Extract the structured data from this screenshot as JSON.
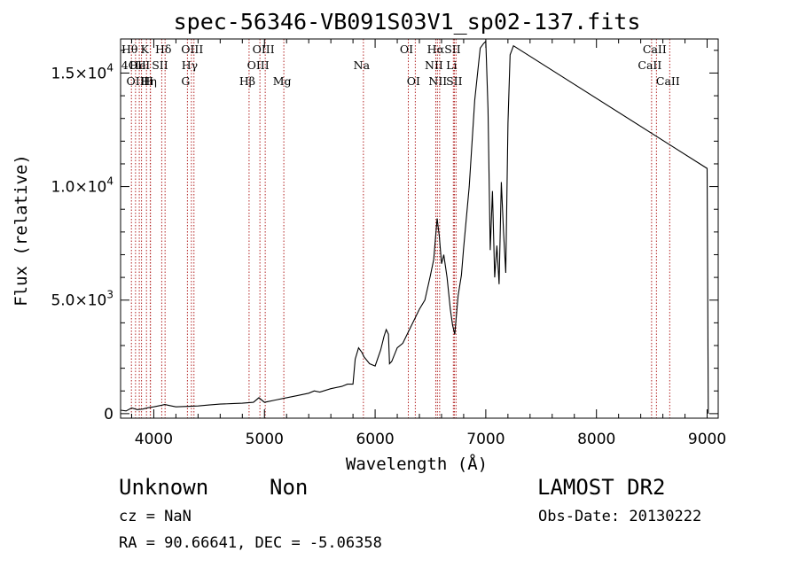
{
  "chart_data": {
    "type": "line",
    "title": "spec-56346-VB091S03V1_sp02-137.fits",
    "xlabel": "Wavelength (Å)",
    "ylabel": "Flux (relative)",
    "xlim": [
      3700,
      9100
    ],
    "ylim": [
      -200,
      16500
    ],
    "xticks": [
      {
        "v": 4000,
        "label": "4000"
      },
      {
        "v": 5000,
        "label": "5000"
      },
      {
        "v": 6000,
        "label": "6000"
      },
      {
        "v": 7000,
        "label": "7000"
      },
      {
        "v": 8000,
        "label": "8000"
      },
      {
        "v": 9000,
        "label": "9000"
      }
    ],
    "yticks": [
      {
        "v": 0,
        "label": "0"
      },
      {
        "v": 5000,
        "label": "5.0×10",
        "exp": "3"
      },
      {
        "v": 10000,
        "label": "1.0×10",
        "exp": "4"
      },
      {
        "v": 15000,
        "label": "1.5×10",
        "exp": "4"
      }
    ],
    "grid": false,
    "line_color": "#000000",
    "marker_color": "#b22222",
    "spectrum": {
      "x": [
        3700,
        3750,
        3800,
        3850,
        3900,
        3950,
        4000,
        4050,
        4100,
        4150,
        4200,
        4300,
        4400,
        4500,
        4600,
        4700,
        4800,
        4900,
        4950,
        5000,
        5100,
        5200,
        5300,
        5400,
        5450,
        5500,
        5600,
        5700,
        5750,
        5800,
        5820,
        5850,
        5880,
        5900,
        5950,
        6000,
        6050,
        6080,
        6100,
        6120,
        6130,
        6150,
        6200,
        6250,
        6300,
        6350,
        6400,
        6450,
        6500,
        6530,
        6560,
        6580,
        6600,
        6620,
        6650,
        6680,
        6700,
        6720,
        6750,
        6780,
        6800,
        6850,
        6900,
        6950,
        6980,
        7000,
        7020,
        7040,
        7060,
        7080,
        7100,
        7120,
        7140,
        7160,
        7180,
        7200,
        7220,
        7250,
        9000,
        9005,
        9010
      ],
      "y": [
        150,
        120,
        250,
        180,
        200,
        260,
        300,
        350,
        400,
        350,
        300,
        320,
        340,
        380,
        420,
        440,
        460,
        500,
        700,
        500,
        600,
        700,
        800,
        900,
        1000,
        950,
        1100,
        1200,
        1300,
        1300,
        2400,
        2900,
        2700,
        2500,
        2200,
        2100,
        2800,
        3400,
        3700,
        3500,
        2200,
        2300,
        2900,
        3100,
        3600,
        4100,
        4600,
        5000,
        6100,
        6800,
        8600,
        7800,
        6600,
        7000,
        6000,
        4600,
        3900,
        3500,
        5200,
        6100,
        7300,
        10000,
        13800,
        16100,
        16300,
        16400,
        13400,
        7200,
        9800,
        6000,
        7400,
        5700,
        10200,
        8000,
        6200,
        12800,
        15800,
        16200,
        10800,
        6000,
        0
      ]
    },
    "markers": [
      {
        "x": 3798,
        "label": "Hθ",
        "row": 1
      },
      {
        "x": 3835,
        "label": "4OII",
        "row": 2
      },
      {
        "x": 3869,
        "label": "OIII",
        "row": 3
      },
      {
        "x": 3889,
        "label": "HeI",
        "row": 2
      },
      {
        "x": 3934,
        "label": "K",
        "row": 1
      },
      {
        "x": 3970,
        "label": "Hη",
        "row": 3
      },
      {
        "x": 3968,
        "label": "H",
        "row": 3
      },
      {
        "x": 4072,
        "label": "SII",
        "row": 2
      },
      {
        "x": 4102,
        "label": "Hδ",
        "row": 1
      },
      {
        "x": 4304,
        "label": "G",
        "row": 3
      },
      {
        "x": 4340,
        "label": "Hγ",
        "row": 2
      },
      {
        "x": 4363,
        "label": "OIII",
        "row": 1
      },
      {
        "x": 4861,
        "label": "Hβ",
        "row": 3
      },
      {
        "x": 4959,
        "label": "OIII",
        "row": 2
      },
      {
        "x": 5007,
        "label": "OIII",
        "row": 1
      },
      {
        "x": 5175,
        "label": "Mg",
        "row": 3
      },
      {
        "x": 5894,
        "label": "Na",
        "row": 2
      },
      {
        "x": 6300,
        "label": "OI",
        "row": 1
      },
      {
        "x": 6363,
        "label": "OI",
        "row": 3
      },
      {
        "x": 6548,
        "label": "NII",
        "row": 2
      },
      {
        "x": 6563,
        "label": "Hα",
        "row": 1
      },
      {
        "x": 6583,
        "label": "NII",
        "row": 3
      },
      {
        "x": 6707,
        "label": "Li",
        "row": 2
      },
      {
        "x": 6716,
        "label": "SII",
        "row": 1
      },
      {
        "x": 6731,
        "label": "SII",
        "row": 3
      },
      {
        "x": 8498,
        "label": "CaII",
        "row": 2
      },
      {
        "x": 8542,
        "label": "CaII",
        "row": 1
      },
      {
        "x": 8662,
        "label": "CaII",
        "row": 3
      }
    ]
  },
  "info": {
    "object_class": "Unknown",
    "subclass": "Non",
    "survey": "LAMOST DR2",
    "redshift": "cz = NaN",
    "obs_date": "Obs-Date: 20130222",
    "coords": "RA =  90.66641, DEC =  -5.06358"
  }
}
